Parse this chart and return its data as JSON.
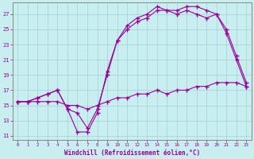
{
  "xlabel": "Windchill (Refroidissement éolien,°C)",
  "xlim": [
    -0.5,
    23.5
  ],
  "ylim": [
    10.5,
    28.5
  ],
  "yticks": [
    11,
    13,
    15,
    17,
    19,
    21,
    23,
    25,
    27
  ],
  "xticks": [
    0,
    1,
    2,
    3,
    4,
    5,
    6,
    7,
    8,
    9,
    10,
    11,
    12,
    13,
    14,
    15,
    16,
    17,
    18,
    19,
    20,
    21,
    22,
    23
  ],
  "bg_color": "#c8eef0",
  "line_color": "#990099",
  "grid_color": "#a0d0d8",
  "curve1_x": [
    0,
    1,
    2,
    3,
    4,
    5,
    6,
    7,
    8,
    9,
    10,
    11,
    12,
    13,
    14,
    15,
    16,
    17,
    18,
    19,
    20,
    21,
    22,
    23
  ],
  "curve1_y": [
    15.5,
    15.5,
    16.0,
    16.5,
    17.0,
    14.5,
    11.5,
    11.5,
    14.0,
    19.5,
    23.5,
    25.0,
    26.0,
    26.5,
    27.5,
    27.5,
    27.0,
    27.5,
    27.0,
    26.5,
    27.0,
    24.5,
    21.0,
    17.5
  ],
  "curve2_x": [
    0,
    1,
    2,
    3,
    4,
    5,
    6,
    7,
    8,
    9,
    10,
    11,
    12,
    13,
    14,
    15,
    16,
    17,
    18,
    19,
    20,
    21,
    22,
    23
  ],
  "curve2_y": [
    15.5,
    15.5,
    16.0,
    16.5,
    17.0,
    14.5,
    14.0,
    12.0,
    14.5,
    19.0,
    23.5,
    25.5,
    26.5,
    27.0,
    28.0,
    27.5,
    27.5,
    28.0,
    28.0,
    27.5,
    27.0,
    25.0,
    21.5,
    18.0
  ],
  "curve3_x": [
    0,
    1,
    2,
    3,
    4,
    5,
    6,
    7,
    8,
    9,
    10,
    11,
    12,
    13,
    14,
    15,
    16,
    17,
    18,
    19,
    20,
    21,
    22,
    23
  ],
  "curve3_y": [
    15.5,
    15.5,
    15.5,
    15.5,
    15.5,
    15.0,
    15.0,
    14.5,
    15.0,
    15.5,
    16.0,
    16.0,
    16.5,
    16.5,
    17.0,
    16.5,
    17.0,
    17.0,
    17.5,
    17.5,
    18.0,
    18.0,
    18.0,
    17.5
  ]
}
